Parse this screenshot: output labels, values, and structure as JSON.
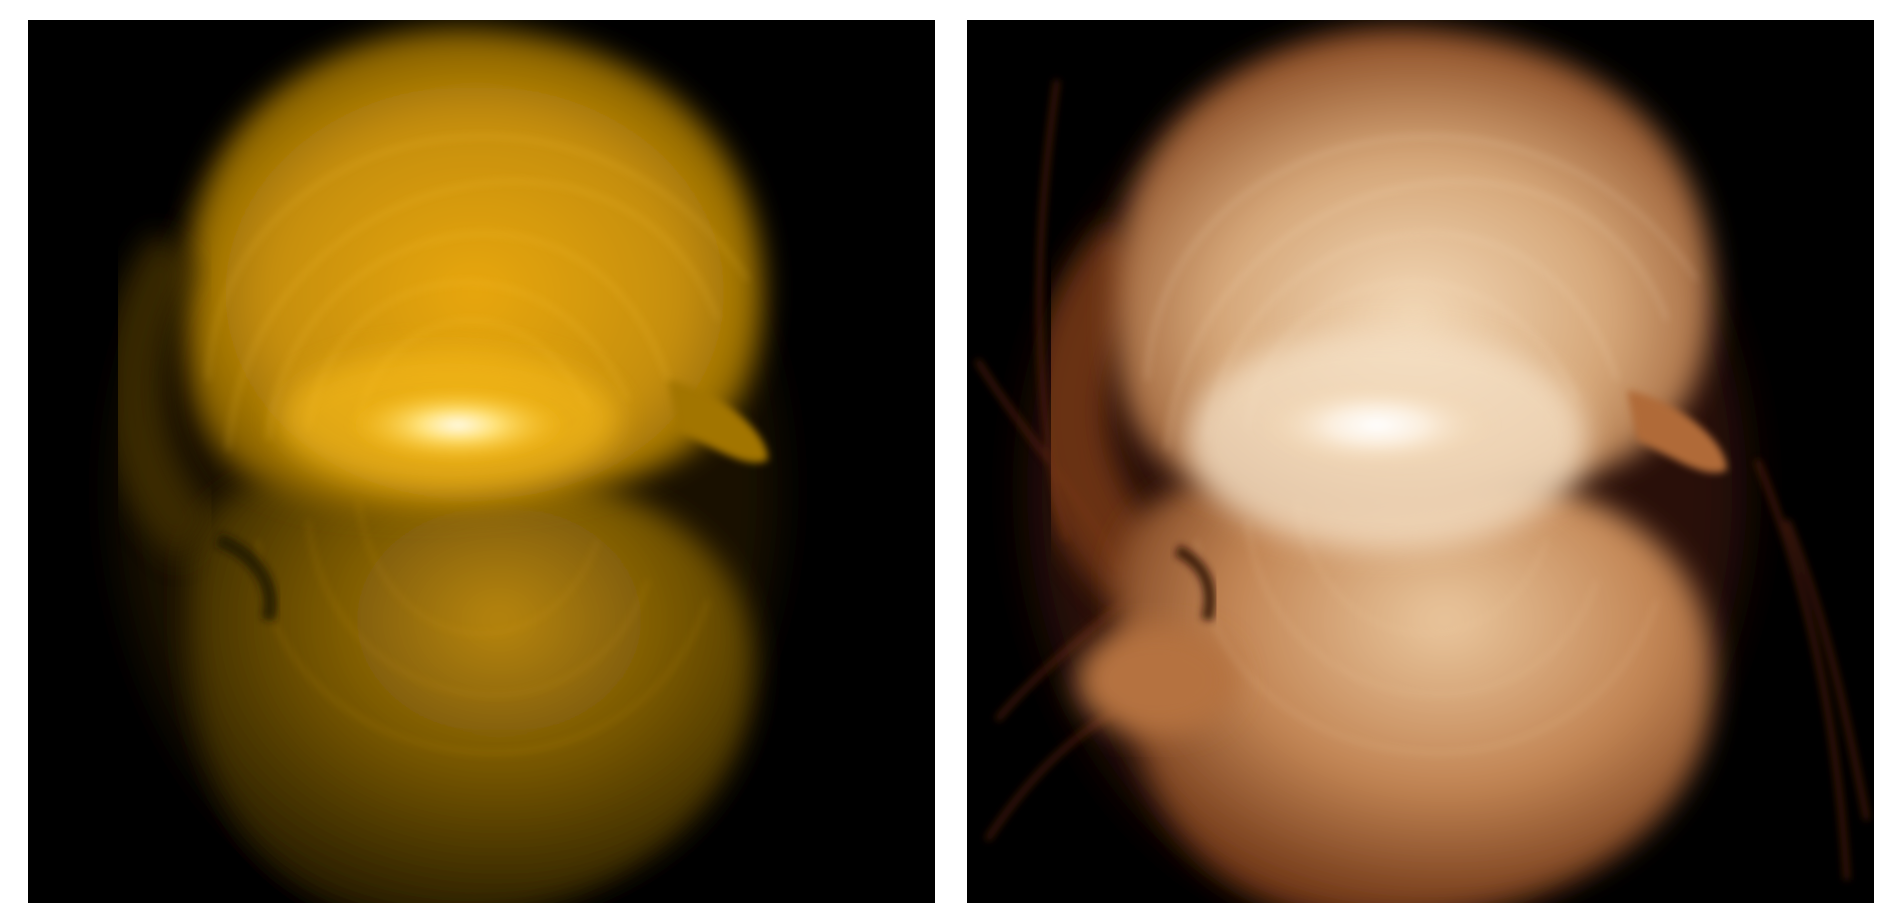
{
  "panels": [
    {
      "id": "left",
      "description_tag": "coronal-loops-euv-gold",
      "palette": {
        "core": "#fff6dc",
        "bright": "#ffc21a",
        "mid": "#d59a07",
        "dim": "#7a5a05",
        "faint": "#3a2a03",
        "background": "#000000"
      }
    },
    {
      "id": "right",
      "description_tag": "coronal-loops-euv-copper",
      "palette": {
        "core": "#fffaf2",
        "bright": "#f2d3aa",
        "mid": "#c98d5a",
        "dim": "#7e4220",
        "faint": "#3b1608",
        "background": "#000000"
      }
    }
  ]
}
